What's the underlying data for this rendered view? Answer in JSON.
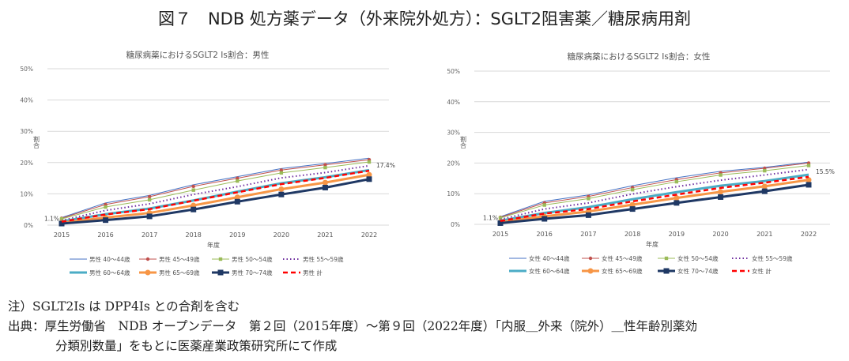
{
  "figure_title": "図７　NDB 処方薬データ（外来院外処方）：SGLT2阻害薬／糖尿病用剤",
  "notes": {
    "note": "注）SGLT2Is は DPP4Is との合剤を含む",
    "source_line1": "出典：厚生労働省　NDB オープンデータ　第２回（2015年度）～第９回（2022年度）「内服＿外来（院外）＿性年齢別薬効",
    "source_line2": "分類別数量」をもとに医薬産業政策研究所にて作成"
  },
  "chart_data": [
    {
      "type": "line",
      "title": "糖尿病薬におけるSGLT2 Is割合：男性",
      "xlabel": "年度",
      "ylabel": "割合",
      "x": [
        "2015",
        "2016",
        "2017",
        "2018",
        "2019",
        "2020",
        "2021",
        "2022"
      ],
      "yticks": [
        "0%",
        "10%",
        "20%",
        "30%",
        "40%",
        "50%"
      ],
      "ylim": [
        0,
        50
      ],
      "grid": true,
      "legend": "bottom",
      "data_labels": {
        "first": "1.1%",
        "last": "17.4%"
      },
      "series": [
        {
          "name": "男性 40～44歳",
          "color": "#4472c4",
          "style": "thin",
          "values": [
            2.4,
            7.1,
            9.5,
            12.9,
            15.5,
            18.1,
            19.7,
            21.4
          ]
        },
        {
          "name": "男性 45～49歳",
          "color": "#c0504d",
          "style": "thin-circle",
          "values": [
            2.2,
            6.6,
            9.1,
            12.4,
            15.0,
            17.6,
            19.3,
            20.9
          ]
        },
        {
          "name": "男性 50～54歳",
          "color": "#9bbb59",
          "style": "thin-square",
          "values": [
            2.0,
            5.8,
            8.1,
            11.2,
            14.1,
            16.7,
            18.4,
            20.2
          ]
        },
        {
          "name": "男性 55～59歳",
          "color": "#7030a0",
          "style": "dotted",
          "values": [
            1.5,
            4.7,
            6.8,
            9.8,
            12.3,
            15.1,
            16.8,
            19.0
          ]
        },
        {
          "name": "男性 60～64歳",
          "color": "#4bacc6",
          "style": "thick",
          "values": [
            1.2,
            3.5,
            5.3,
            7.9,
            10.7,
            13.4,
            15.3,
            17.6
          ]
        },
        {
          "name": "男性 65～69歳",
          "color": "#f79646",
          "style": "thick-circle",
          "values": [
            0.8,
            2.4,
            3.9,
            6.3,
            8.9,
            11.5,
            13.6,
            16.1
          ]
        },
        {
          "name": "男性 70～74歳",
          "color": "#1f3864",
          "style": "thick-square",
          "values": [
            0.5,
            1.6,
            2.8,
            5.0,
            7.5,
            9.8,
            12.0,
            14.7
          ]
        },
        {
          "name": "男性 計",
          "color": "#ff0000",
          "style": "dashed",
          "values": [
            1.1,
            3.4,
            5.1,
            7.8,
            10.5,
            13.1,
            15.1,
            17.4
          ]
        }
      ]
    },
    {
      "type": "line",
      "title": "糖尿病薬におけるSGLT2 Is割合：女性",
      "xlabel": "年度",
      "ylabel": "割合",
      "x": [
        "2015",
        "2016",
        "2017",
        "2018",
        "2019",
        "2020",
        "2021",
        "2022"
      ],
      "yticks": [
        "0%",
        "10%",
        "20%",
        "30%",
        "40%",
        "50%"
      ],
      "ylim": [
        0,
        50
      ],
      "grid": true,
      "legend": "bottom",
      "data_labels": {
        "first": "1.1%",
        "last": "15.5%"
      },
      "series": [
        {
          "name": "女性 40～44歳",
          "color": "#4472c4",
          "style": "thin",
          "values": [
            2.5,
            7.5,
            9.6,
            12.6,
            15.2,
            17.3,
            18.6,
            20.3
          ]
        },
        {
          "name": "女性 45～49歳",
          "color": "#c0504d",
          "style": "thin-circle",
          "values": [
            2.3,
            7.0,
            9.1,
            12.0,
            14.6,
            16.8,
            18.3,
            20.0
          ]
        },
        {
          "name": "女性 50～54歳",
          "color": "#9bbb59",
          "style": "thin-square",
          "values": [
            2.1,
            6.3,
            8.4,
            11.3,
            13.9,
            16.1,
            17.5,
            19.2
          ]
        },
        {
          "name": "女性 55～59歳",
          "color": "#7030a0",
          "style": "dotted",
          "values": [
            1.6,
            5.0,
            7.0,
            9.9,
            12.3,
            14.4,
            16.1,
            17.9
          ]
        },
        {
          "name": "女性 60～64歳",
          "color": "#4bacc6",
          "style": "thick",
          "values": [
            1.2,
            3.7,
            5.6,
            8.2,
            10.5,
            12.6,
            14.1,
            16.2
          ]
        },
        {
          "name": "女性 65～69歳",
          "color": "#f79646",
          "style": "thick-circle",
          "values": [
            0.7,
            2.6,
            4.2,
            6.4,
            8.6,
            10.6,
            12.4,
            14.5
          ]
        },
        {
          "name": "女性 70～74歳",
          "color": "#1f3864",
          "style": "thick-square",
          "values": [
            0.4,
            1.8,
            3.0,
            5.0,
            7.0,
            8.9,
            10.8,
            12.9
          ]
        },
        {
          "name": "女性 計",
          "color": "#ff0000",
          "style": "dashed",
          "values": [
            1.1,
            3.5,
            5.0,
            7.5,
            9.7,
            11.9,
            13.6,
            15.5
          ]
        }
      ]
    }
  ]
}
